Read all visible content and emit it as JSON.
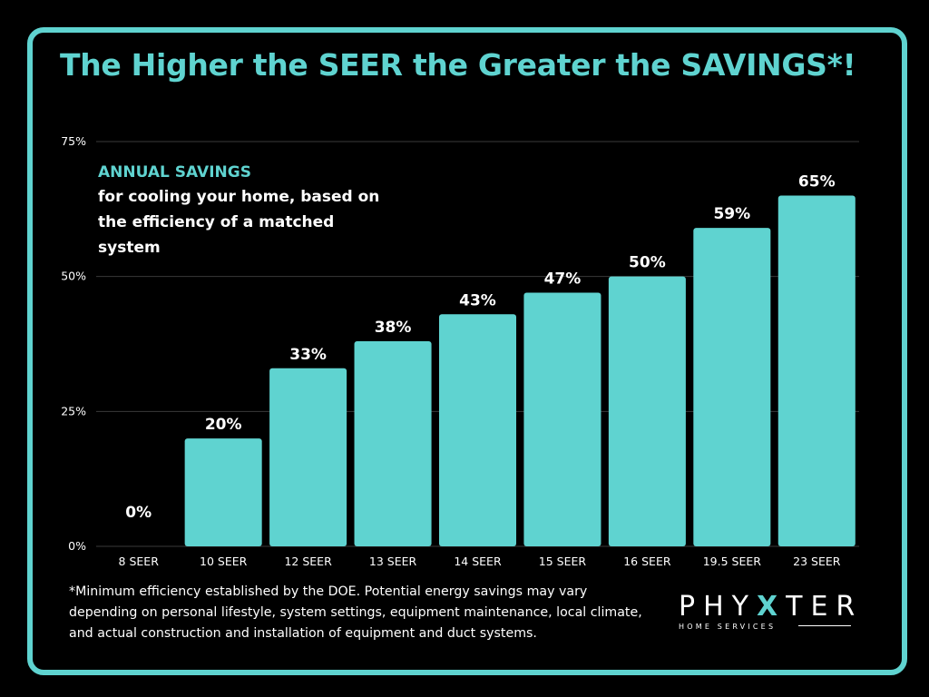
{
  "title": "The Higher the SEER the Greater the SAVINGS*!",
  "subtitle": {
    "head": "ANNUAL SAVINGS",
    "body": "for cooling your home, based on the efficiency of a matched system"
  },
  "footnote": "*Minimum efficiency established by the DOE. Potential energy savings may vary depending on personal lifestyle, system settings, equipment maintenance, local climate, and actual construction and installation of equipment and duct systems.",
  "logo": {
    "word_a": "PHY",
    "word_x": "X",
    "word_b": "TER",
    "sub": "HOME SERVICES"
  },
  "colors": {
    "accent": "#5fd3d0",
    "background": "#000000",
    "text": "#ffffff"
  },
  "chart_data": {
    "type": "bar",
    "categories": [
      "8 SEER",
      "10 SEER",
      "12 SEER",
      "13 SEER",
      "14 SEER",
      "15 SEER",
      "16 SEER",
      "19.5 SEER",
      "23 SEER"
    ],
    "values": [
      0,
      20,
      33,
      38,
      43,
      47,
      50,
      59,
      65
    ],
    "data_labels": [
      "0%",
      "20%",
      "33%",
      "38%",
      "43%",
      "47%",
      "50%",
      "59%",
      "65%"
    ],
    "ylim": [
      0,
      75
    ],
    "yticks": [
      0,
      25,
      50,
      75
    ],
    "ytick_labels": [
      "0%",
      "25%",
      "50%",
      "75%"
    ],
    "grid": true,
    "bar_color": "#5fd3d0"
  }
}
